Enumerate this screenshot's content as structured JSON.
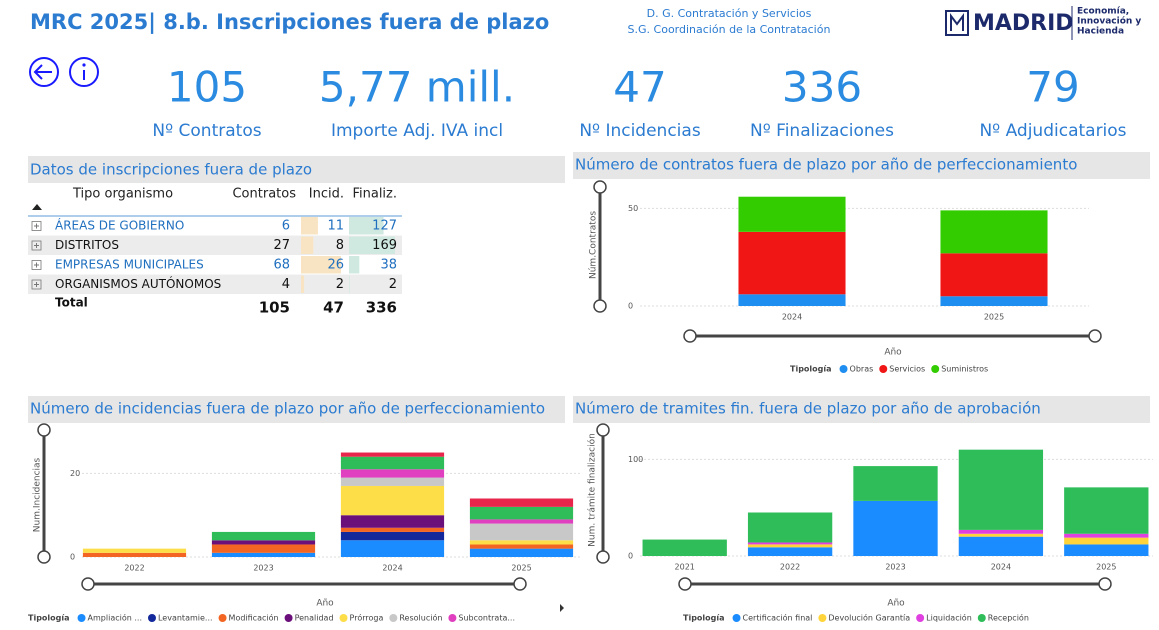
{
  "header": {
    "title": "MRC 2025| 8.b. Inscripciones fuera de plazo",
    "unit_lines": [
      "D. G. Contratación y Servicios",
      "S.G. Coordinación de la Contratación"
    ],
    "logo": "MADRID",
    "logo_sub": [
      "Economía,",
      "Innovación y",
      "Hacienda"
    ]
  },
  "kpis": [
    {
      "value": 105,
      "label": "Nº Contratos"
    },
    {
      "value": "5,77 mill.",
      "label": "Importe Adj. IVA incl"
    },
    {
      "value": 47,
      "label": "Nº Incidencias"
    },
    {
      "value": 336,
      "label": "Nº Finalizaciones"
    },
    {
      "value": 79,
      "label": "Nº Adjudicatarios"
    }
  ],
  "table": {
    "title": "Datos de inscripciones fuera de plazo",
    "columns": [
      "Tipo organismo",
      "Contratos",
      "Incid.",
      "Finaliz."
    ],
    "rows": [
      {
        "name": "ÁREAS DE GOBIERNO",
        "values": [
          6,
          11,
          127
        ]
      },
      {
        "name": "DISTRITOS",
        "values": [
          27,
          8,
          169
        ]
      },
      {
        "name": "EMPRESAS MUNICIPALES",
        "values": [
          68,
          26,
          38
        ]
      },
      {
        "name": "ORGANISMOS AUTÓNOMOS",
        "values": [
          4,
          2,
          2
        ]
      }
    ],
    "total": {
      "label": "Total",
      "values": [
        105,
        47,
        336
      ]
    }
  },
  "chart_data": [
    {
      "type": "bar",
      "stacked": true,
      "title": "Número de contratos fuera de plazo por año de perfeccionamiento",
      "y_label": "Núm.Contratos",
      "x_label": "Año",
      "legend_title": "Tipología",
      "categories": [
        "2024",
        "2025"
      ],
      "series": [
        {
          "name": "Obras",
          "color": "#1f8ef1",
          "values": [
            6,
            5
          ]
        },
        {
          "name": "Servicios",
          "color": "#f01616",
          "values": [
            32,
            22
          ]
        },
        {
          "name": "Suministros",
          "color": "#33cc00",
          "values": [
            18,
            22
          ]
        }
      ],
      "ylim": [
        0,
        62
      ],
      "yticks": [
        0,
        50
      ],
      "grid": true
    },
    {
      "type": "bar",
      "stacked": true,
      "title": "Número de incidencias fuera de plazo por año de perfeccionamiento",
      "y_label": "Num.Incidencias",
      "x_label": "Año",
      "legend_title": "Tipología",
      "categories": [
        "2022",
        "2023",
        "2024",
        "2025"
      ],
      "series": [
        {
          "name": "Ampliación ...",
          "color": "#1a8cff",
          "values": [
            0,
            1,
            4,
            2
          ]
        },
        {
          "name": "Levantamie...",
          "color": "#13289a",
          "values": [
            0,
            0,
            2,
            0
          ]
        },
        {
          "name": "Modificación",
          "color": "#f26522",
          "values": [
            1,
            2,
            1,
            1
          ]
        },
        {
          "name": "Penalidad",
          "color": "#6b0f7a",
          "values": [
            0,
            1,
            3,
            0
          ]
        },
        {
          "name": "Prórroga",
          "color": "#fddd48",
          "values": [
            1,
            0,
            7,
            1
          ]
        },
        {
          "name": "Resolución",
          "color": "#c8c8c8",
          "values": [
            0,
            0,
            2,
            4
          ]
        },
        {
          "name": "Subcontrata...",
          "color": "#e040c0",
          "values": [
            0,
            0,
            2,
            1
          ]
        },
        {
          "color": "#2ebd59",
          "values": [
            0,
            2,
            3,
            3
          ]
        },
        {
          "color": "#e8254a",
          "values": [
            0,
            0,
            1,
            2
          ]
        }
      ],
      "ylim": [
        0,
        28
      ],
      "yticks": [
        0,
        20
      ],
      "grid": true
    },
    {
      "type": "bar",
      "stacked": true,
      "title": "Número de tramites fin. fuera de plazo por año de aprobación",
      "y_label": "Num. trámite finalización",
      "x_label": "Año",
      "legend_title": "Tipología",
      "categories": [
        "2021",
        "2022",
        "2023",
        "2024",
        "2025"
      ],
      "series": [
        {
          "name": "Certificación final",
          "color": "#1a8cff",
          "values": [
            0,
            9,
            57,
            20,
            12
          ]
        },
        {
          "name": "Devolución Garantía",
          "color": "#ffd43b",
          "values": [
            0,
            3,
            0,
            3,
            7
          ]
        },
        {
          "name": "Liquidación",
          "color": "#e040e0",
          "values": [
            0,
            2,
            0,
            4,
            4
          ]
        },
        {
          "name": "Recepción",
          "color": "#2ebd59",
          "values": [
            17,
            31,
            36,
            83,
            48
          ]
        }
      ],
      "ylim": [
        0,
        120
      ],
      "yticks": [
        0,
        100
      ],
      "grid": true
    }
  ]
}
